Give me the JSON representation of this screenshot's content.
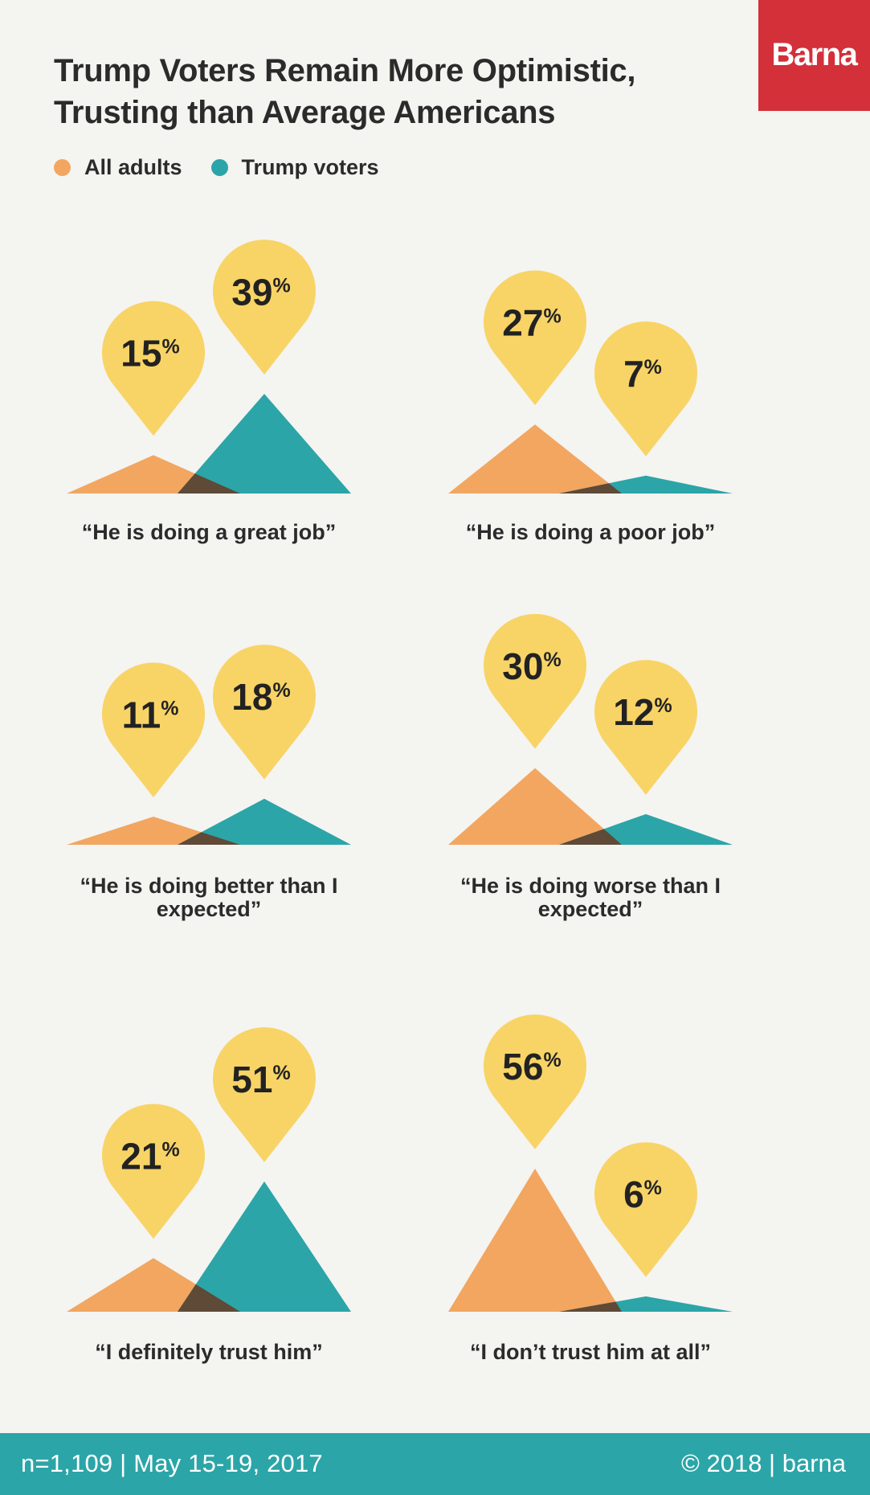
{
  "header": {
    "title_line1": "Trump Voters Remain More Optimistic,",
    "title_line2": "Trusting than Average Americans",
    "logo": "Barna"
  },
  "legend": {
    "all_adults": "All adults",
    "trump_voters": "Trump voters"
  },
  "colors": {
    "all_adults": "#f2a660",
    "trump_voters": "#2ba5a8",
    "overlap": "#5e4a37",
    "pin": "#f8d466",
    "logo_bg": "#d3303a",
    "footer_bg": "#2ba5a8",
    "background": "#f4f4f1"
  },
  "chart_data": {
    "type": "area",
    "unit": "%",
    "series": [
      {
        "name": "All adults",
        "values": [
          15,
          27,
          11,
          30,
          21,
          56
        ]
      },
      {
        "name": "Trump voters",
        "values": [
          39,
          7,
          18,
          12,
          51,
          6
        ]
      }
    ],
    "panels": [
      {
        "caption_line1": "“He is doing a great job”",
        "caption_line2": "",
        "all_adults": 15,
        "trump_voters": 39
      },
      {
        "caption_line1": "“He is doing a poor job”",
        "caption_line2": "",
        "all_adults": 27,
        "trump_voters": 7
      },
      {
        "caption_line1": "“He is doing better than I",
        "caption_line2": "expected”",
        "all_adults": 11,
        "trump_voters": 18
      },
      {
        "caption_line1": "“He is doing worse than I",
        "caption_line2": "expected”",
        "all_adults": 30,
        "trump_voters": 12
      },
      {
        "caption_line1": "“I definitely trust him”",
        "caption_line2": "",
        "all_adults": 21,
        "trump_voters": 51
      },
      {
        "caption_line1": "“I don’t trust him at all”",
        "caption_line2": "",
        "all_adults": 56,
        "trump_voters": 6
      }
    ]
  },
  "footer": {
    "left": "n=1,109 | May 15-19, 2017",
    "right": "© 2018 | barna"
  }
}
